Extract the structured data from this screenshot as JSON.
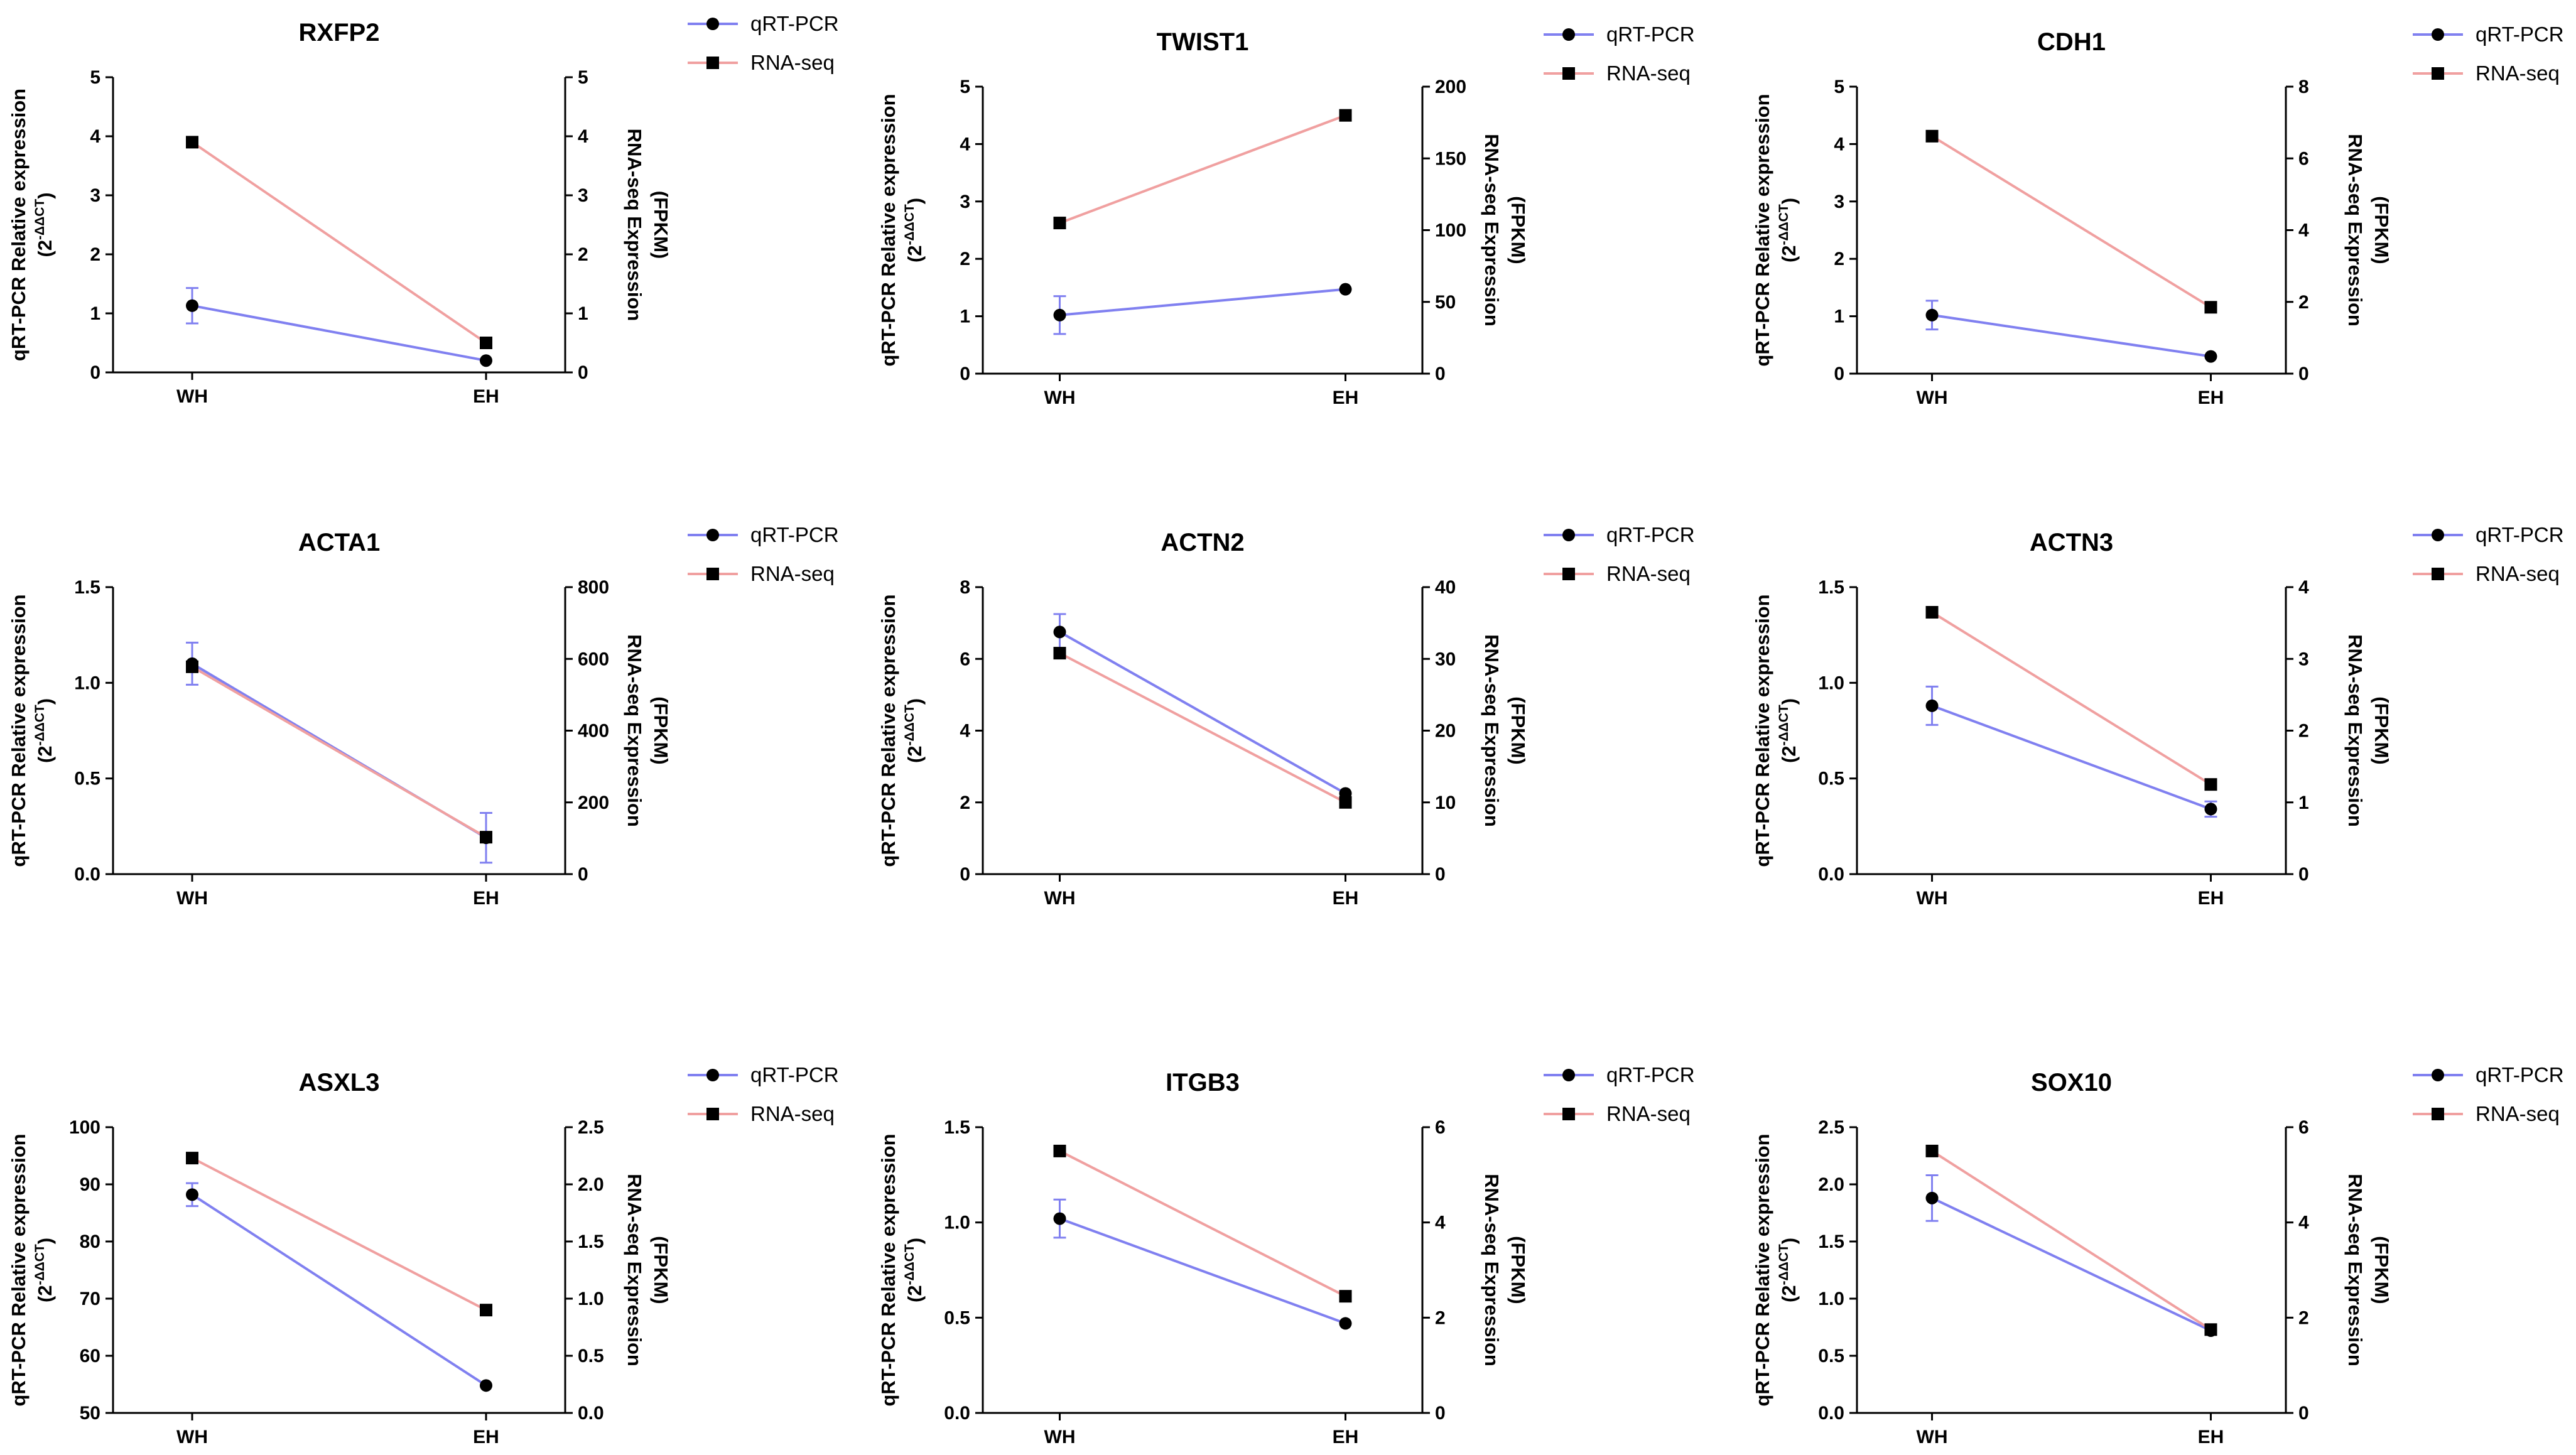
{
  "colors": {
    "qpcr": "#8080f0",
    "rnaseq": "#f0a0a0",
    "marker": "#000000"
  },
  "chart_data": [
    {
      "type": "line",
      "title": "RXFP2",
      "categories": [
        "WH",
        "EH"
      ],
      "ylabel_left": "qRT-PCR Relative expression",
      "ylabel_left_sub": "(2",
      "ylabel_left_sup": "-ΔΔCT",
      "ylabel_left_close": ")",
      "ylabel_right": "RNA-seq Expression",
      "ylabel_right_sub": "(FPKM)",
      "ylim_left": [
        0,
        5
      ],
      "yticks_left": [
        "0",
        "1",
        "2",
        "3",
        "4",
        "5"
      ],
      "ylim_right": [
        0,
        5
      ],
      "yticks_right": [
        "0",
        "1",
        "2",
        "3",
        "4",
        "5"
      ],
      "series": [
        {
          "name": "qRT-PCR",
          "axis": "left",
          "values": [
            1.13,
            0.2
          ],
          "errors": [
            0.3,
            0.0
          ]
        },
        {
          "name": "RNA-seq",
          "axis": "right",
          "values": [
            3.9,
            0.5
          ],
          "errors": [
            0,
            0
          ]
        }
      ]
    },
    {
      "type": "line",
      "title": "TWIST1",
      "categories": [
        "WH",
        "EH"
      ],
      "ylabel_left": "qRT-PCR Relative expression",
      "ylabel_left_sub": "(2",
      "ylabel_left_sup": "-ΔΔCT",
      "ylabel_left_close": ")",
      "ylabel_right": "RNA-seq Expression",
      "ylabel_right_sub": "(FPKM)",
      "ylim_left": [
        0,
        5
      ],
      "yticks_left": [
        "0",
        "1",
        "2",
        "3",
        "4",
        "5"
      ],
      "ylim_right": [
        0,
        200
      ],
      "yticks_right": [
        "0",
        "50",
        "100",
        "150",
        "200"
      ],
      "series": [
        {
          "name": "qRT-PCR",
          "axis": "left",
          "values": [
            1.02,
            1.47
          ],
          "errors": [
            0.33,
            0.0
          ]
        },
        {
          "name": "RNA-seq",
          "axis": "right",
          "values": [
            105,
            180
          ],
          "errors": [
            0,
            0
          ]
        }
      ]
    },
    {
      "type": "line",
      "title": "CDH1",
      "categories": [
        "WH",
        "EH"
      ],
      "ylabel_left": "qRT-PCR Relative expression",
      "ylabel_left_sub": "(2",
      "ylabel_left_sup": "-ΔΔCT",
      "ylabel_left_close": ")",
      "ylabel_right": "RNA-seq Expression",
      "ylabel_right_sub": "(FPKM)",
      "ylim_left": [
        0,
        5
      ],
      "yticks_left": [
        "0",
        "1",
        "2",
        "3",
        "4",
        "5"
      ],
      "ylim_right": [
        0,
        8
      ],
      "yticks_right": [
        "0",
        "2",
        "4",
        "6",
        "8"
      ],
      "series": [
        {
          "name": "qRT-PCR",
          "axis": "left",
          "values": [
            1.02,
            0.3
          ],
          "errors": [
            0.25,
            0.0
          ]
        },
        {
          "name": "RNA-seq",
          "axis": "right",
          "values": [
            6.62,
            1.85
          ],
          "errors": [
            0,
            0
          ]
        }
      ]
    },
    {
      "type": "line",
      "title": "ACTA1",
      "categories": [
        "WH",
        "EH"
      ],
      "ylabel_left": "qRT-PCR Relative expression",
      "ylabel_left_sub": "(2",
      "ylabel_left_sup": "-ΔΔCT",
      "ylabel_left_close": ")",
      "ylabel_right": "RNA-seq Expression",
      "ylabel_right_sub": "(FPKM)",
      "ylim_left": [
        0,
        1.5
      ],
      "yticks_left": [
        "0.0",
        "0.5",
        "1.0",
        "1.5"
      ],
      "ylim_right": [
        0,
        800
      ],
      "yticks_right": [
        "0",
        "200",
        "400",
        "600",
        "800"
      ],
      "series": [
        {
          "name": "qRT-PCR",
          "axis": "left",
          "values": [
            1.1,
            0.19
          ],
          "errors": [
            0.11,
            0.13
          ]
        },
        {
          "name": "RNA-seq",
          "axis": "right",
          "values": [
            578,
            103
          ],
          "errors": [
            0,
            0
          ]
        }
      ]
    },
    {
      "type": "line",
      "title": "ACTN2",
      "categories": [
        "WH",
        "EH"
      ],
      "ylabel_left": "qRT-PCR Relative expression",
      "ylabel_left_sub": "(2",
      "ylabel_left_sup": "-ΔΔCT",
      "ylabel_left_close": ")",
      "ylabel_right": "RNA-seq Expression",
      "ylabel_right_sub": "(FPKM)",
      "ylim_left": [
        0,
        8
      ],
      "yticks_left": [
        "0",
        "2",
        "4",
        "6",
        "8"
      ],
      "ylim_right": [
        0,
        40
      ],
      "yticks_right": [
        "0",
        "10",
        "20",
        "30",
        "40"
      ],
      "series": [
        {
          "name": "qRT-PCR",
          "axis": "left",
          "values": [
            6.75,
            2.25
          ],
          "errors": [
            0.5,
            0.0
          ]
        },
        {
          "name": "RNA-seq",
          "axis": "right",
          "values": [
            30.8,
            10.0
          ],
          "errors": [
            0,
            0
          ]
        }
      ]
    },
    {
      "type": "line",
      "title": "ACTN3",
      "categories": [
        "WH",
        "EH"
      ],
      "ylabel_left": "qRT-PCR Relative expression",
      "ylabel_left_sub": "(2",
      "ylabel_left_sup": "-ΔΔCT",
      "ylabel_left_close": ")",
      "ylabel_right": "RNA-seq Expression",
      "ylabel_right_sub": "(FPKM)",
      "ylim_left": [
        0,
        1.5
      ],
      "yticks_left": [
        "0.0",
        "0.5",
        "1.0",
        "1.5"
      ],
      "ylim_right": [
        0,
        4
      ],
      "yticks_right": [
        "0",
        "1",
        "2",
        "3",
        "4"
      ],
      "series": [
        {
          "name": "qRT-PCR",
          "axis": "left",
          "values": [
            0.88,
            0.34
          ],
          "errors": [
            0.1,
            0.04
          ]
        },
        {
          "name": "RNA-seq",
          "axis": "right",
          "values": [
            3.65,
            1.25
          ],
          "errors": [
            0,
            0
          ]
        }
      ]
    },
    {
      "type": "line",
      "title": "ASXL3",
      "categories": [
        "WH",
        "EH"
      ],
      "ylabel_left": "qRT-PCR Relative expression",
      "ylabel_left_sub": "(2",
      "ylabel_left_sup": "-ΔΔCT",
      "ylabel_left_close": ")",
      "ylabel_right": "RNA-seq Expression",
      "ylabel_right_sub": "(FPKM)",
      "ylim_left": [
        50,
        100
      ],
      "yticks_left": [
        "50",
        "60",
        "70",
        "80",
        "90",
        "100"
      ],
      "ylim_right": [
        0,
        2.5
      ],
      "yticks_right": [
        "0.0",
        "0.5",
        "1.0",
        "1.5",
        "2.0",
        "2.5"
      ],
      "series": [
        {
          "name": "qRT-PCR",
          "axis": "left",
          "values": [
            88.2,
            54.8
          ],
          "errors": [
            2.0,
            0.0
          ]
        },
        {
          "name": "RNA-seq",
          "axis": "right",
          "values": [
            2.23,
            0.9
          ],
          "errors": [
            0,
            0
          ]
        }
      ]
    },
    {
      "type": "line",
      "title": "ITGB3",
      "categories": [
        "WH",
        "EH"
      ],
      "ylabel_left": "qRT-PCR Relative expression",
      "ylabel_left_sub": "(2",
      "ylabel_left_sup": "-ΔΔCT",
      "ylabel_left_close": ")",
      "ylabel_right": "RNA-seq Expression",
      "ylabel_right_sub": "(FPKM)",
      "ylim_left": [
        0,
        1.5
      ],
      "yticks_left": [
        "0.0",
        "0.5",
        "1.0",
        "1.5"
      ],
      "ylim_right": [
        0,
        6
      ],
      "yticks_right": [
        "0",
        "2",
        "4",
        "6"
      ],
      "series": [
        {
          "name": "qRT-PCR",
          "axis": "left",
          "values": [
            1.02,
            0.47
          ],
          "errors": [
            0.1,
            0.0
          ]
        },
        {
          "name": "RNA-seq",
          "axis": "right",
          "values": [
            5.5,
            2.45
          ],
          "errors": [
            0,
            0
          ]
        }
      ]
    },
    {
      "type": "line",
      "title": "SOX10",
      "categories": [
        "WH",
        "EH"
      ],
      "ylabel_left": "qRT-PCR Relative expression",
      "ylabel_left_sub": "(2",
      "ylabel_left_sup": "-ΔΔCT",
      "ylabel_left_close": ")",
      "ylabel_right": "RNA-seq Expression",
      "ylabel_right_sub": "(FPKM)",
      "ylim_left": [
        0,
        2.5
      ],
      "yticks_left": [
        "0.0",
        "0.5",
        "1.0",
        "1.5",
        "2.0",
        "2.5"
      ],
      "ylim_right": [
        0,
        6
      ],
      "yticks_right": [
        "0",
        "2",
        "4",
        "6"
      ],
      "series": [
        {
          "name": "qRT-PCR",
          "axis": "left",
          "values": [
            1.88,
            0.72
          ],
          "errors": [
            0.2,
            0.0
          ]
        },
        {
          "name": "RNA-seq",
          "axis": "right",
          "values": [
            5.5,
            1.75
          ],
          "errors": [
            0,
            0
          ]
        }
      ]
    }
  ]
}
